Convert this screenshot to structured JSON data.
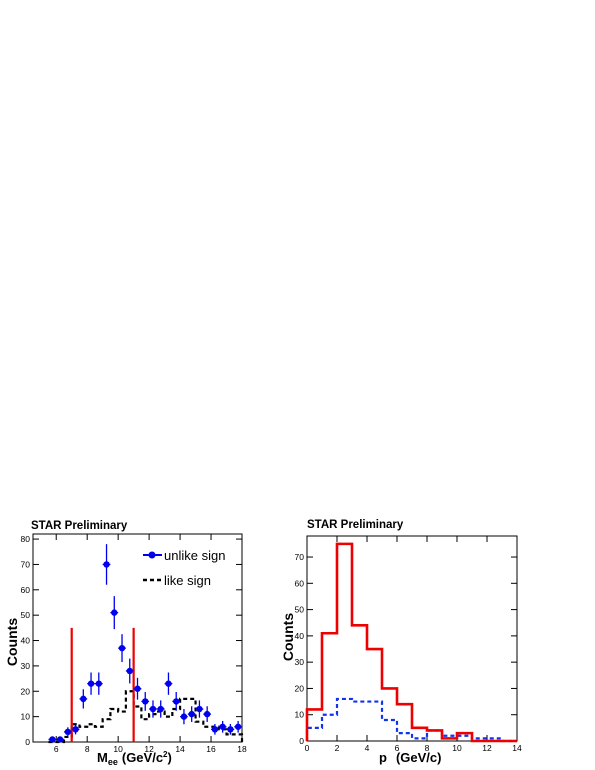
{
  "chart_data": [
    {
      "type": "scatter",
      "title": "STAR Preliminary",
      "xlabel_main": "M",
      "xlabel_sub": "ee",
      "xlabel_unit": "(GeV/c",
      "xlabel_sup": "2",
      "xlabel_close": ")",
      "ylabel": "Counts",
      "xlim": [
        4.5,
        18
      ],
      "ylim": [
        0,
        82
      ],
      "xticks": [
        6,
        8,
        10,
        12,
        14,
        16,
        18
      ],
      "yticks": [
        0,
        10,
        20,
        30,
        40,
        50,
        60,
        70,
        80
      ],
      "legend_position": "top-right",
      "series": [
        {
          "name": "unlike sign",
          "color": "#0000ee",
          "marker": "circle-with-errorbars",
          "points": [
            {
              "x": 5.75,
              "y": 1,
              "err": 0.9
            },
            {
              "x": 6.25,
              "y": 1,
              "err": 0.9
            },
            {
              "x": 6.75,
              "y": 4,
              "err": 1.8
            },
            {
              "x": 7.25,
              "y": 5,
              "err": 2.0
            },
            {
              "x": 7.75,
              "y": 17,
              "err": 3.8
            },
            {
              "x": 8.25,
              "y": 23,
              "err": 4.4
            },
            {
              "x": 8.75,
              "y": 23,
              "err": 4.4
            },
            {
              "x": 9.25,
              "y": 70,
              "err": 8.0
            },
            {
              "x": 9.75,
              "y": 51,
              "err": 6.5
            },
            {
              "x": 10.25,
              "y": 37,
              "err": 5.5
            },
            {
              "x": 10.75,
              "y": 28,
              "err": 4.9
            },
            {
              "x": 11.25,
              "y": 21,
              "err": 4.3
            },
            {
              "x": 11.75,
              "y": 16,
              "err": 3.7
            },
            {
              "x": 12.25,
              "y": 13,
              "err": 3.4
            },
            {
              "x": 12.75,
              "y": 13,
              "err": 3.4
            },
            {
              "x": 13.25,
              "y": 23,
              "err": 4.4
            },
            {
              "x": 13.75,
              "y": 16,
              "err": 3.7
            },
            {
              "x": 14.25,
              "y": 10,
              "err": 3.0
            },
            {
              "x": 14.75,
              "y": 11,
              "err": 3.1
            },
            {
              "x": 15.25,
              "y": 13,
              "err": 3.4
            },
            {
              "x": 15.75,
              "y": 11,
              "err": 3.1
            },
            {
              "x": 16.25,
              "y": 5,
              "err": 2.1
            },
            {
              "x": 16.75,
              "y": 6,
              "err": 2.3
            },
            {
              "x": 17.25,
              "y": 5,
              "err": 2.1
            },
            {
              "x": 17.75,
              "y": 6,
              "err": 2.3
            }
          ]
        },
        {
          "name": "like sign",
          "color": "#000000",
          "marker": "dashed-step",
          "edges": [
            5.5,
            6,
            6.5,
            7,
            7.5,
            8,
            8.5,
            9,
            9.5,
            10,
            10.5,
            11,
            11.5,
            12,
            12.5,
            13,
            13.5,
            14,
            14.5,
            15,
            15.5,
            16,
            16.5,
            17,
            17.5,
            18
          ],
          "values": [
            0,
            0,
            2,
            7,
            6,
            7,
            6,
            9,
            13,
            12,
            20,
            14,
            9,
            11,
            12,
            10,
            13,
            17,
            17,
            8,
            6,
            6,
            5,
            3,
            3
          ]
        }
      ],
      "cut_lines": {
        "color": "#ee0000",
        "x": [
          7,
          11
        ],
        "height": 45
      }
    },
    {
      "type": "line",
      "title": "STAR Preliminary",
      "xlabel_main": "p",
      "xlabel_unit": "(GeV/c)",
      "ylabel": "Counts",
      "xlim": [
        0,
        14
      ],
      "ylim": [
        0,
        78
      ],
      "xticks": [
        0,
        2,
        4,
        6,
        8,
        10,
        12,
        14
      ],
      "yticks": [
        0,
        10,
        20,
        30,
        40,
        50,
        60,
        70
      ],
      "series": [
        {
          "color": "#ee0000",
          "style": "solid-step",
          "edges": [
            0,
            1,
            2,
            3,
            4,
            5,
            6,
            7,
            8,
            9,
            10,
            11,
            12,
            13,
            14
          ],
          "values": [
            12,
            41,
            75,
            44,
            35,
            20,
            14,
            5,
            4,
            1,
            3,
            0,
            0,
            0
          ]
        },
        {
          "color": "#1133ee",
          "style": "dashed-step",
          "edges": [
            0,
            1,
            2,
            3,
            4,
            5,
            6,
            7,
            8,
            9,
            10,
            11,
            12,
            13,
            14
          ],
          "values": [
            5,
            10,
            16,
            15,
            15,
            8,
            3,
            1,
            4,
            2,
            2,
            1,
            1,
            0
          ]
        }
      ]
    }
  ]
}
